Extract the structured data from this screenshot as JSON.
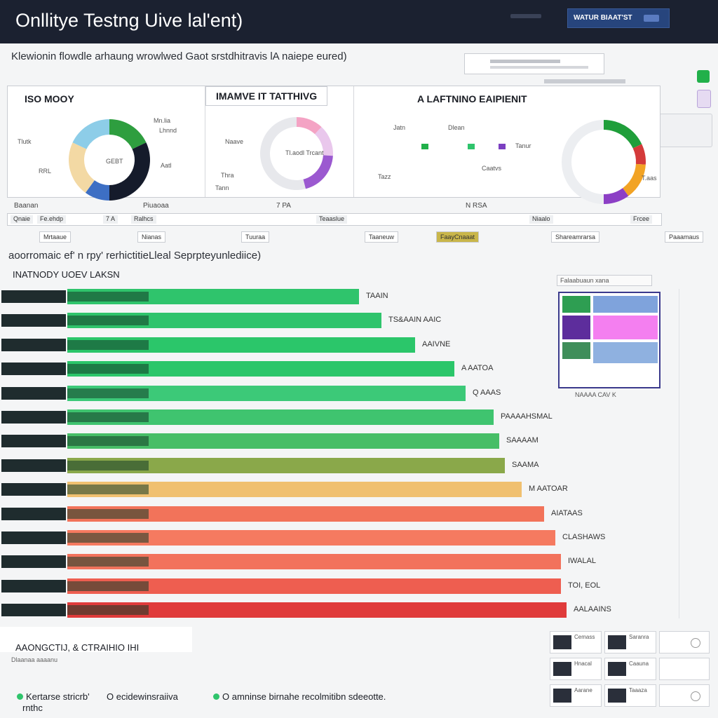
{
  "header": {
    "title": "Onllitye Testng Uive lal'ent)",
    "action_button": "WATUR BIAAT'ST"
  },
  "subtitle": "Klewionin flowdle arhaung wrowlwed   Gaot srstdhitravis lA naiepe eured)",
  "search": {
    "placeholder": ""
  },
  "charts": [
    {
      "title": "ISO MOOY",
      "legend": [
        "Mn.lia",
        "Lhnnd",
        "Tlutk",
        "Aatl"
      ],
      "tick_labels": [
        "RRL",
        "GEBT"
      ]
    },
    {
      "title": "IMAMVE  IT TATTHIVG",
      "legend": [
        "Naave",
        "Thra",
        "Tann"
      ],
      "center_label": "Tl.aodl Trcant"
    },
    {
      "title": "A LAFTNINO EAIPIENIT",
      "legend": [
        "Jatn",
        "Dlean",
        "Tanur",
        "Tazz"
      ],
      "tick_labels": [
        "Caatvs",
        "T.aas"
      ]
    }
  ],
  "chart_data": [
    {
      "type": "pie",
      "title": "ISO MOOY",
      "series": [
        {
          "name": "slice-1",
          "value": 18,
          "color": "#2e9e3f"
        },
        {
          "name": "slice-2",
          "value": 32,
          "color": "#151b2b"
        },
        {
          "name": "slice-3",
          "value": 10,
          "color": "#3d6fc4"
        },
        {
          "name": "slice-4",
          "value": 22,
          "color": "#f3d9a4"
        },
        {
          "name": "slice-5",
          "value": 18,
          "color": "#8dcde8"
        }
      ]
    },
    {
      "type": "pie",
      "title": "IMAMVE  IT TATTHIVG",
      "series": [
        {
          "name": "slice-1",
          "value": 12,
          "color": "#f4a3c4"
        },
        {
          "name": "slice-2",
          "value": 14,
          "color": "#e9c7ec"
        },
        {
          "name": "slice-3",
          "value": 20,
          "color": "#9b59d0"
        },
        {
          "name": "slice-4",
          "value": 54,
          "color": "#e7e8ec"
        }
      ]
    },
    {
      "type": "pie",
      "title": "A LAFTNINO EAIPIENIT",
      "series": [
        {
          "name": "slice-1",
          "value": 18,
          "color": "#1f9e3a"
        },
        {
          "name": "slice-2",
          "value": 8,
          "color": "#d43a3a"
        },
        {
          "name": "slice-3",
          "value": 14,
          "color": "#f2a324"
        },
        {
          "name": "slice-4",
          "value": 10,
          "color": "#8c3fc5"
        },
        {
          "name": "slice-5",
          "value": 50,
          "color": "#eceef1"
        }
      ]
    },
    {
      "type": "bar",
      "title": "INATNODY  UOEV   LAKSN",
      "orientation": "horizontal",
      "categories": [
        "TAAIN",
        "TS&AAIN AAIC",
        "AAIVNE",
        "A AATOA",
        "Q AAAS",
        "PAAAAHSMAL",
        "SAAAAM",
        "SAAMA",
        "M AATOAR",
        "AIATAAS",
        "CLASHAWS",
        "IWALAL",
        "TOI, EOL",
        "AALAAINS"
      ],
      "values": [
        52,
        56,
        62,
        69,
        71,
        76,
        77,
        78,
        81,
        85,
        87,
        88,
        88,
        89
      ],
      "colors": [
        "#2fc46c",
        "#2fc46c",
        "#2bc66a",
        "#2bc66a",
        "#3cc978",
        "#3fc46f",
        "#47be67",
        "#8aa84a",
        "#f0c070",
        "#f2735a",
        "#f57a60",
        "#f2725c",
        "#ee5e50",
        "#e03b3b"
      ],
      "xlim": [
        0,
        100
      ]
    }
  ],
  "strip": [
    "Baanan",
    "Piuaoaa",
    "7 PA",
    "N RSA"
  ],
  "chips": [
    "Qnaie",
    "Fe.ehdp",
    "7 A",
    "Ralhcs",
    "Teaaslue",
    "Niaalo",
    "Frcee"
  ],
  "tags": [
    "Mrtaaue",
    "Nianas",
    "Tuuraa",
    "Taaneuw",
    "FaayCnaaat",
    "Shareamrarsa",
    "Paaamaus"
  ],
  "section_title": "aoorromaic ef' n rpy' rerhictitieLleal Seprpteyunlediice)",
  "legend_title": "INATNODY  UOEV   LAKSN",
  "heatmap": {
    "caption": "NAAAA CAV K",
    "top_label": "Falaabuaun xana"
  },
  "footer": {
    "title": "AAONGCTIJ, & CTRAIHIO IHI",
    "sub": "Dlaanaa aaaanu",
    "items": [
      "Kertarse stricrb'",
      "O ecidewinsraiiva",
      "O amninse birnahe recolmitibn sdeeotte."
    ],
    "last": "rnthc",
    "thumbs": [
      "Cemass",
      "Saranra",
      "Hnacal",
      "Caauna",
      "Aarane",
      "Taaaza"
    ]
  }
}
